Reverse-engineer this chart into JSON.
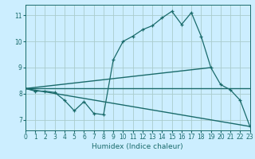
{
  "title": "",
  "xlabel": "Humidex (Indice chaleur)",
  "bg_color": "#cceeff",
  "line_color": "#1a6b6b",
  "grid_color": "#aacccc",
  "x_main": [
    0,
    1,
    2,
    3,
    4,
    5,
    6,
    7,
    8,
    9,
    10,
    11,
    12,
    13,
    14,
    15,
    16,
    17,
    18,
    19,
    20,
    21,
    22,
    23
  ],
  "y_main": [
    8.2,
    8.1,
    8.1,
    8.05,
    7.75,
    7.35,
    7.7,
    7.25,
    7.2,
    9.3,
    10.0,
    10.2,
    10.45,
    10.6,
    10.9,
    11.15,
    10.65,
    11.1,
    10.2,
    9.0,
    8.35,
    8.15,
    7.75,
    6.75
  ],
  "line_horiz": [
    [
      0,
      23
    ],
    [
      8.2,
      8.2
    ]
  ],
  "line_desc": [
    [
      0,
      23
    ],
    [
      8.2,
      6.75
    ]
  ],
  "line_asc": [
    [
      0,
      19
    ],
    [
      8.2,
      9.0
    ]
  ],
  "ylim": [
    6.6,
    11.4
  ],
  "xlim": [
    0,
    23
  ],
  "yticks": [
    7,
    8,
    9,
    10,
    11
  ],
  "xticks": [
    0,
    1,
    2,
    3,
    4,
    5,
    6,
    7,
    8,
    9,
    10,
    11,
    12,
    13,
    14,
    15,
    16,
    17,
    18,
    19,
    20,
    21,
    22,
    23
  ]
}
